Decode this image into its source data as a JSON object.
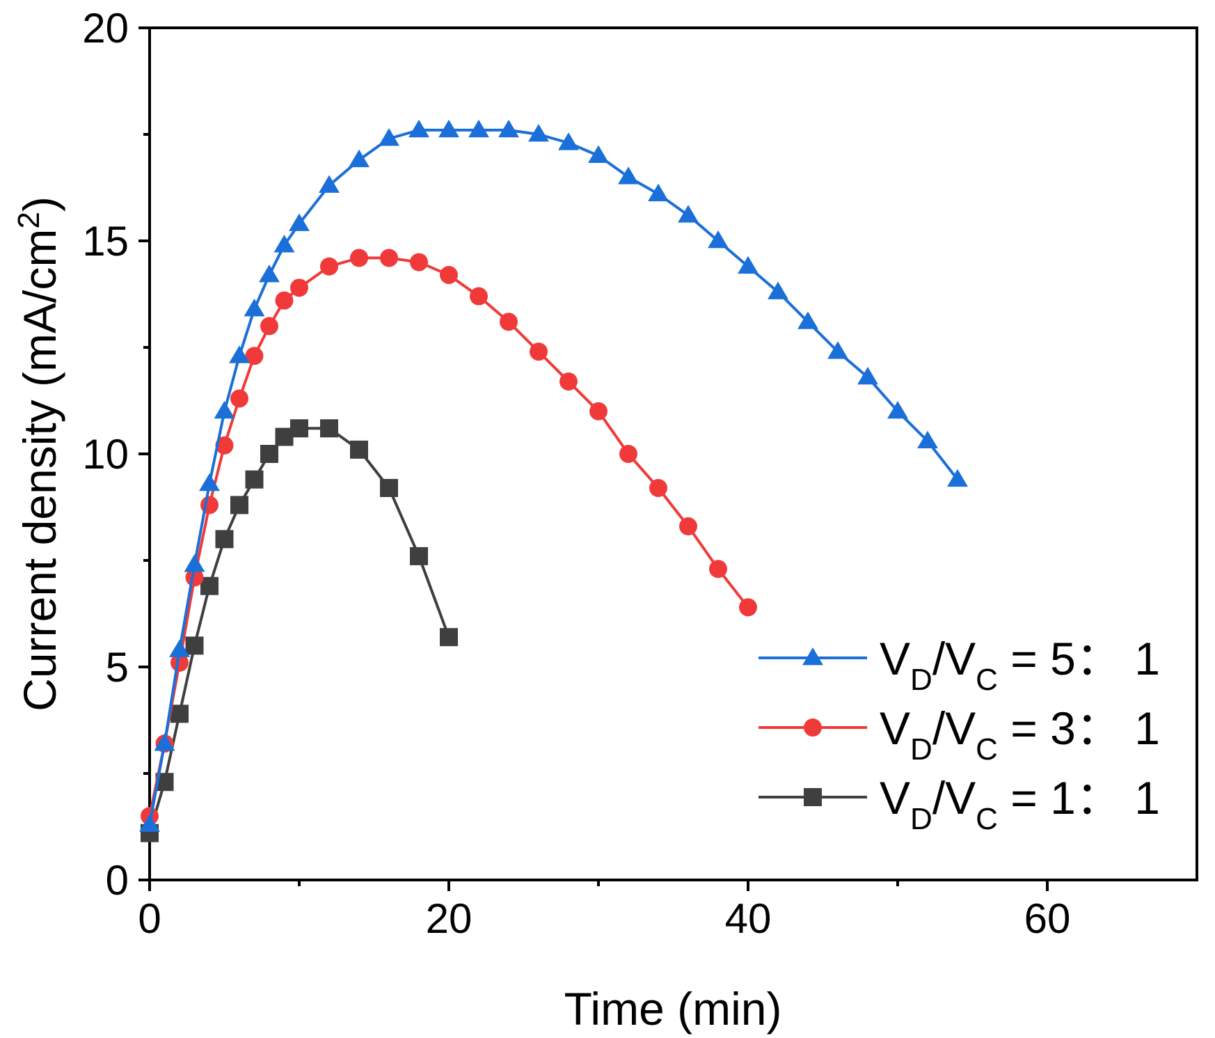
{
  "chart_data": {
    "type": "line",
    "xlabel": "Time (min)",
    "ylabel_main": "Current density (mA/cm",
    "ylabel_sup": "2",
    "ylabel_end": ")",
    "xlim": [
      0,
      70
    ],
    "ylim": [
      0,
      20
    ],
    "x_ticks": [
      0,
      20,
      40,
      60
    ],
    "y_ticks": [
      0,
      5,
      10,
      15,
      20
    ],
    "grid": false,
    "legend_position": "lower-right",
    "series": [
      {
        "key": "vd5",
        "legend": {
          "prefix": "V",
          "sub1": "D",
          "mid": "/V",
          "sub2": "C",
          "suffix": " = 5： 1"
        },
        "color": "#1a6fd8",
        "marker": "triangle",
        "x": [
          0,
          1,
          2,
          3,
          4,
          5,
          6,
          7,
          8,
          9,
          10,
          12,
          14,
          16,
          18,
          20,
          22,
          24,
          26,
          28,
          30,
          32,
          34,
          36,
          38,
          40,
          42,
          44,
          46,
          48,
          50,
          52,
          54
        ],
        "y": [
          1.3,
          3.2,
          5.4,
          7.4,
          9.3,
          11.0,
          12.3,
          13.4,
          14.2,
          14.9,
          15.4,
          16.3,
          16.9,
          17.4,
          17.6,
          17.6,
          17.6,
          17.6,
          17.5,
          17.3,
          17.0,
          16.5,
          16.1,
          15.6,
          15.0,
          14.4,
          13.8,
          13.1,
          12.4,
          11.8,
          11.0,
          10.3,
          9.4
        ]
      },
      {
        "key": "vd3",
        "legend": {
          "prefix": "V",
          "sub1": "D",
          "mid": "/V",
          "sub2": "C",
          "suffix": " = 3： 1"
        },
        "color": "#f03a3a",
        "marker": "circle",
        "x": [
          0,
          1,
          2,
          3,
          4,
          5,
          6,
          7,
          8,
          9,
          10,
          12,
          14,
          16,
          18,
          20,
          22,
          24,
          26,
          28,
          30,
          32,
          34,
          36,
          38,
          40
        ],
        "y": [
          1.5,
          3.2,
          5.1,
          7.1,
          8.8,
          10.2,
          11.3,
          12.3,
          13.0,
          13.6,
          13.9,
          14.4,
          14.6,
          14.6,
          14.5,
          14.2,
          13.7,
          13.1,
          12.4,
          11.7,
          11.0,
          10.0,
          9.2,
          8.3,
          7.3,
          6.4
        ]
      },
      {
        "key": "vd1",
        "legend": {
          "prefix": "V",
          "sub1": "D",
          "mid": "/V",
          "sub2": "C",
          "suffix": " = 1： 1"
        },
        "color": "#3f3f3f",
        "marker": "square",
        "x": [
          0,
          1,
          2,
          3,
          4,
          5,
          6,
          7,
          8,
          9,
          10,
          12,
          14,
          16,
          18,
          20
        ],
        "y": [
          1.1,
          2.3,
          3.9,
          5.5,
          6.9,
          8.0,
          8.8,
          9.4,
          10.0,
          10.4,
          10.6,
          10.6,
          10.1,
          9.2,
          7.6,
          5.7
        ]
      }
    ]
  }
}
